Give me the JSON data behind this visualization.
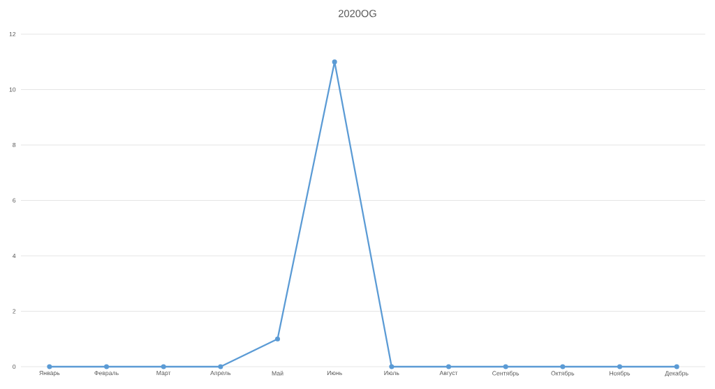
{
  "chart_data": {
    "type": "line",
    "title": "2020OG",
    "categories": [
      "Январь",
      "Февраль",
      "Март",
      "Апрель",
      "Май",
      "Июнь",
      "Июль",
      "Август",
      "Сентябрь",
      "Октябрь",
      "Ноябрь",
      "Декабрь"
    ],
    "values": [
      0,
      0,
      0,
      0,
      1,
      11,
      0,
      0,
      0,
      0,
      0,
      0
    ],
    "color": "#5b9bd5",
    "ylim": [
      0,
      12
    ],
    "yticks": [
      0,
      2,
      4,
      6,
      8,
      10,
      12
    ],
    "grid": "y",
    "marker": "circle"
  }
}
